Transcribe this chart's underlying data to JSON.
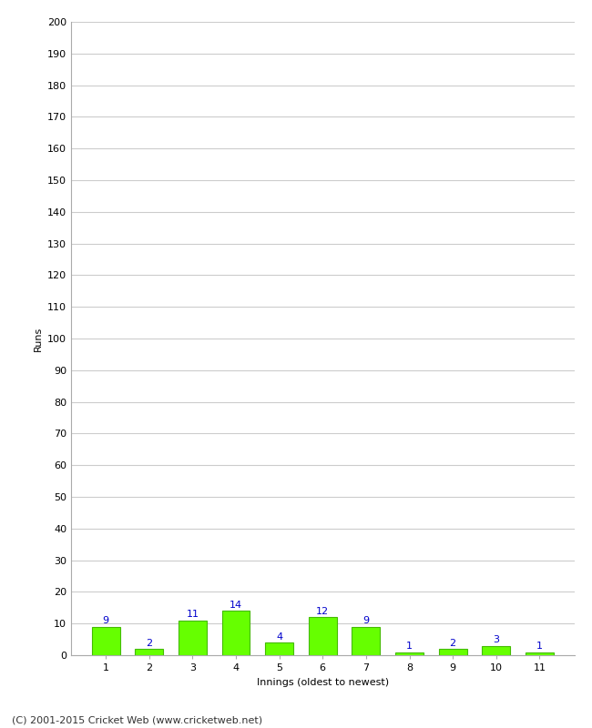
{
  "innings": [
    1,
    2,
    3,
    4,
    5,
    6,
    7,
    8,
    9,
    10,
    11
  ],
  "runs": [
    9,
    2,
    11,
    14,
    4,
    12,
    9,
    1,
    2,
    3,
    1
  ],
  "bar_color": "#66ff00",
  "bar_edge_color": "#44bb00",
  "label_color": "#0000cc",
  "xlabel": "Innings (oldest to newest)",
  "ylabel": "Runs",
  "ylim": [
    0,
    200
  ],
  "yticks": [
    0,
    10,
    20,
    30,
    40,
    50,
    60,
    70,
    80,
    90,
    100,
    110,
    120,
    130,
    140,
    150,
    160,
    170,
    180,
    190,
    200
  ],
  "footer": "(C) 2001-2015 Cricket Web (www.cricketweb.net)",
  "background_color": "#ffffff",
  "grid_color": "#cccccc",
  "label_fontsize": 8,
  "axis_fontsize": 8,
  "footer_fontsize": 8
}
